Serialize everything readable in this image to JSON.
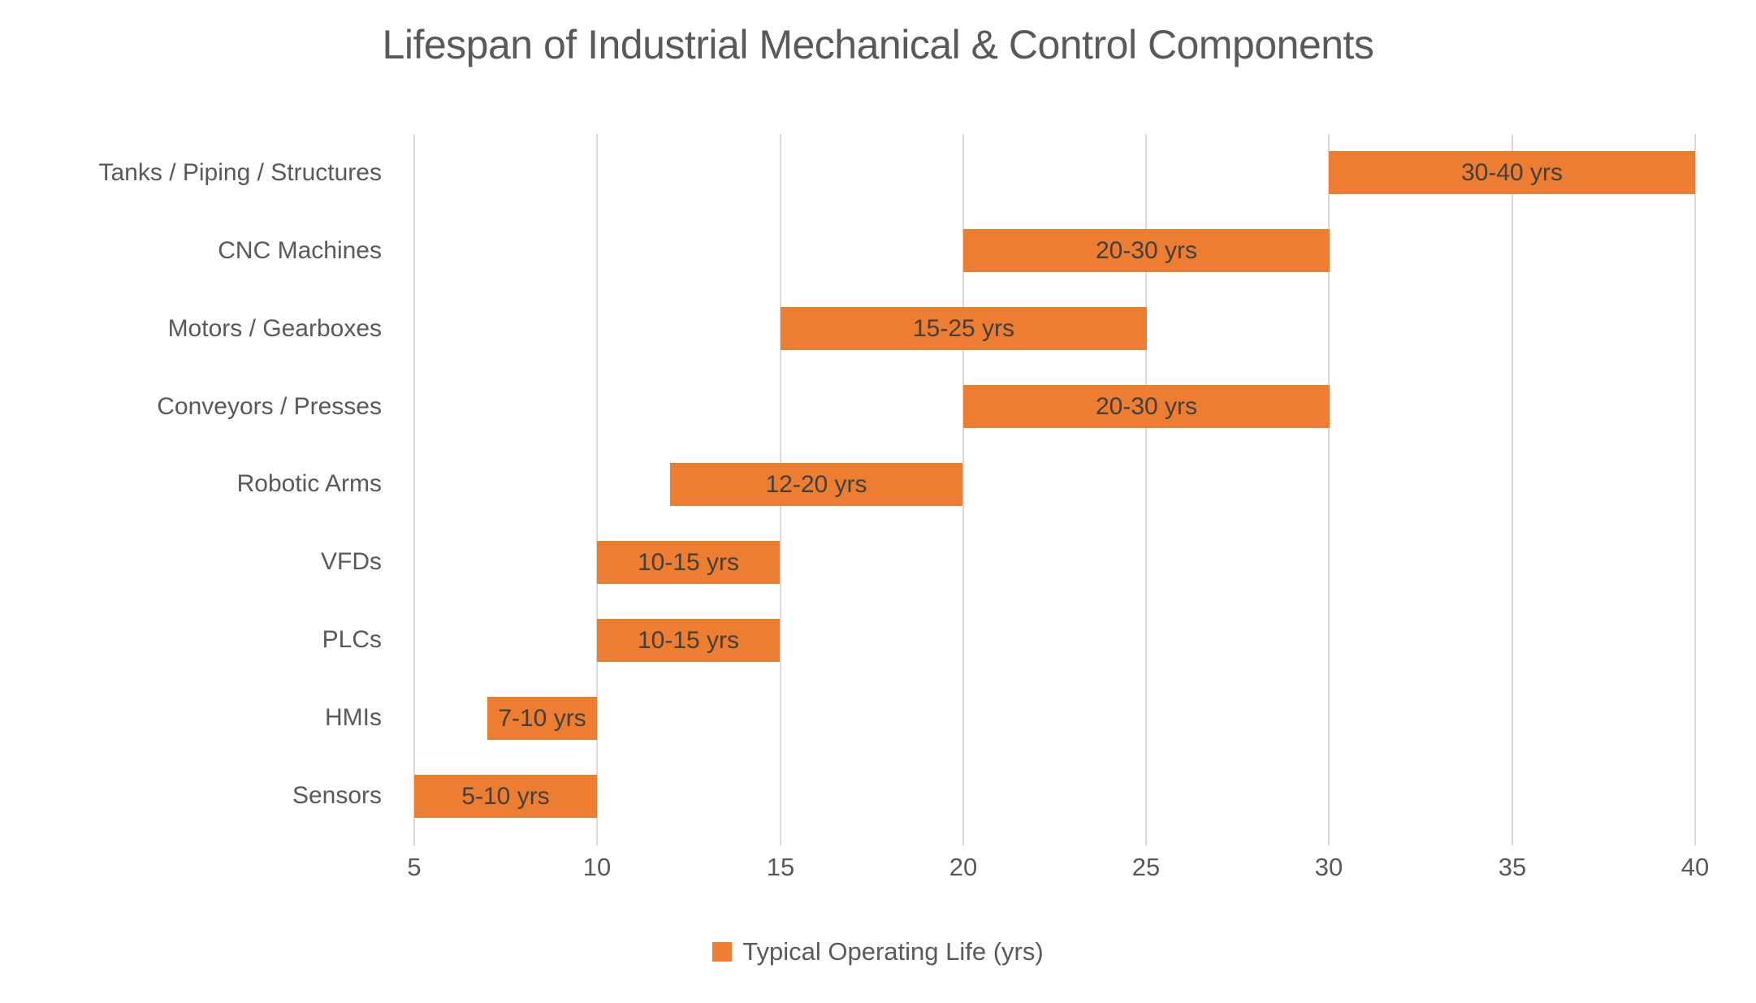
{
  "chart_data": {
    "type": "bar",
    "orientation": "horizontal",
    "subtype": "floating-range-bars",
    "title": "Lifespan of Industrial Mechanical & Control Components",
    "categories": [
      "Tanks / Piping / Structures",
      "CNC Machines",
      "Motors / Gearboxes",
      "Conveyors / Presses",
      "Robotic Arms",
      "VFDs",
      "PLCs",
      "HMIs",
      "Sensors"
    ],
    "series": [
      {
        "name": "Typical Operating Life (yrs)",
        "ranges": [
          [
            30,
            40
          ],
          [
            20,
            30
          ],
          [
            15,
            25
          ],
          [
            20,
            30
          ],
          [
            12,
            20
          ],
          [
            10,
            15
          ],
          [
            10,
            15
          ],
          [
            7,
            10
          ],
          [
            5,
            10
          ]
        ],
        "data_labels": [
          "30-40 yrs",
          "20-30 yrs",
          "15-25 yrs",
          "20-30 yrs",
          "12-20 yrs",
          "10-15 yrs",
          "10-15 yrs",
          "7-10 yrs",
          "5-10 yrs"
        ]
      }
    ],
    "xlabel": "",
    "ylabel": "",
    "x_ticks": [
      5,
      10,
      15,
      20,
      25,
      30,
      35,
      40
    ],
    "xlim": [
      5,
      40
    ],
    "grid": true,
    "legend": {
      "position": "bottom",
      "label": "Typical Operating Life (yrs)"
    },
    "colors": {
      "bar": "#ED7D31",
      "bar_label": "#404040",
      "title": "#595959",
      "axis_text": "#595959",
      "gridline": "#D9D9D9",
      "background": "#FFFFFF"
    }
  }
}
